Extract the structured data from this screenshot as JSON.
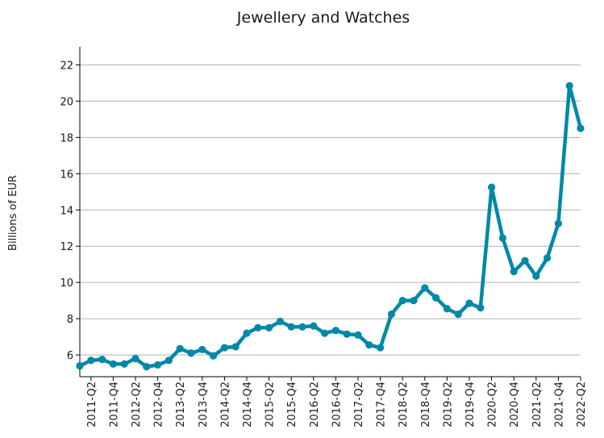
{
  "chart_data": {
    "type": "line",
    "title": "Jewellery and Watches",
    "xlabel": "",
    "ylabel": "Billions of EUR",
    "ylim": [
      4.8,
      23
    ],
    "yticks": [
      6,
      8,
      10,
      12,
      14,
      16,
      18,
      20,
      22
    ],
    "grid": true,
    "line_color": "#0088a8",
    "x": [
      "2011-Q1",
      "2011-Q2",
      "2011-Q3",
      "2011-Q4",
      "2012-Q1",
      "2012-Q2",
      "2012-Q3",
      "2012-Q4",
      "2013-Q1",
      "2013-Q2",
      "2013-Q3",
      "2013-Q4",
      "2014-Q1",
      "2014-Q2",
      "2014-Q3",
      "2014-Q4",
      "2015-Q1",
      "2015-Q2",
      "2015-Q3",
      "2015-Q4",
      "2016-Q1",
      "2016-Q2",
      "2016-Q3",
      "2016-Q4",
      "2017-Q1",
      "2017-Q2",
      "2017-Q3",
      "2017-Q4",
      "2018-Q1",
      "2018-Q2",
      "2018-Q3",
      "2018-Q4",
      "2019-Q1",
      "2019-Q2",
      "2019-Q3",
      "2019-Q4",
      "2020-Q1",
      "2020-Q2",
      "2020-Q3",
      "2020-Q4",
      "2021-Q1",
      "2021-Q2",
      "2021-Q3",
      "2021-Q4",
      "2022-Q1",
      "2022-Q2"
    ],
    "xtick_labels": [
      "2011-Q2",
      "2011-Q4",
      "2012-Q2",
      "2012-Q4",
      "2013-Q2",
      "2013-Q4",
      "2014-Q2",
      "2014-Q4",
      "2015-Q2",
      "2015-Q4",
      "2016-Q2",
      "2016-Q4",
      "2017-Q2",
      "2017-Q4",
      "2018-Q2",
      "2018-Q4",
      "2019-Q2",
      "2019-Q4",
      "2020-Q2",
      "2020-Q4",
      "2021-Q2",
      "2021-Q4",
      "2022-Q2"
    ],
    "series": [
      {
        "values": [
          5.4,
          5.7,
          5.75,
          5.5,
          5.5,
          5.8,
          5.35,
          5.45,
          5.7,
          6.35,
          6.1,
          6.3,
          5.95,
          6.4,
          6.45,
          7.2,
          7.5,
          7.5,
          7.85,
          7.55,
          7.55,
          7.6,
          7.2,
          7.35,
          7.15,
          7.1,
          6.55,
          6.4,
          8.25,
          9.0,
          9.0,
          9.7,
          9.15,
          8.55,
          8.25,
          8.85,
          8.6,
          15.25,
          12.45,
          10.6,
          11.2,
          10.35,
          11.35,
          13.25,
          20.85,
          18.5
        ]
      }
    ]
  }
}
